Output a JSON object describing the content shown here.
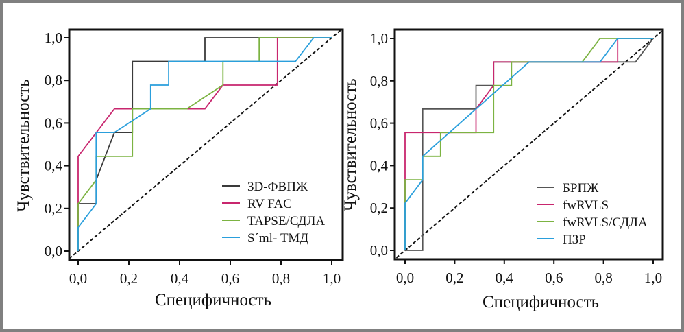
{
  "chart_data": [
    {
      "type": "line",
      "subtype": "roc",
      "xlabel": "Специфичность",
      "ylabel": "Чувствительность",
      "xlim": [
        0,
        1
      ],
      "ylim": [
        0,
        1
      ],
      "xticks": [
        "0,0",
        "0,2",
        "0,4",
        "0,6",
        "0,8",
        "1,0"
      ],
      "yticks": [
        "0,0",
        "0,2",
        "0,4",
        "0,6",
        "0,8",
        "1,0"
      ],
      "xtick_values": [
        0,
        0.2,
        0.4,
        0.6,
        0.8,
        1.0
      ],
      "ytick_values": [
        0,
        0.2,
        0.4,
        0.6,
        0.8,
        1.0
      ],
      "grid": false,
      "legend_position": "bottom-right",
      "reference_line": {
        "style": "dashed",
        "color": "#111111",
        "from": [
          0,
          0
        ],
        "to": [
          1,
          1
        ]
      },
      "series": [
        {
          "name": "3D-ФВПЖ",
          "color": "#3a3a3a",
          "x": [
            0,
            0,
            0.071,
            0.071,
            0.143,
            0.214,
            0.214,
            0.5,
            0.5,
            1.0
          ],
          "y": [
            0,
            0.222,
            0.222,
            0.333,
            0.556,
            0.556,
            0.889,
            0.889,
            1.0,
            1.0
          ]
        },
        {
          "name": "RV FAC",
          "color": "#c8266e",
          "x": [
            0,
            0,
            0.143,
            0.5,
            0.571,
            0.786,
            0.786,
            1.0
          ],
          "y": [
            0,
            0.444,
            0.667,
            0.667,
            0.778,
            0.778,
            1.0,
            1.0
          ]
        },
        {
          "name": "TAPSE/СДЛА",
          "color": "#7cb342",
          "x": [
            0,
            0,
            0.071,
            0.071,
            0.214,
            0.214,
            0.429,
            0.571,
            0.571,
            0.714,
            0.714,
            1.0
          ],
          "y": [
            0,
            0.222,
            0.333,
            0.444,
            0.444,
            0.667,
            0.667,
            0.778,
            0.889,
            0.889,
            1.0,
            1.0
          ]
        },
        {
          "name": "S´ml- ТМД",
          "color": "#2a9fdc",
          "x": [
            0,
            0,
            0.071,
            0.071,
            0.143,
            0.286,
            0.286,
            0.357,
            0.357,
            0.857,
            0.929,
            1.0
          ],
          "y": [
            0,
            0.111,
            0.222,
            0.556,
            0.556,
            0.667,
            0.778,
            0.778,
            0.889,
            0.889,
            1.0,
            1.0
          ]
        }
      ]
    },
    {
      "type": "line",
      "subtype": "roc",
      "xlabel": "Специфичность",
      "ylabel": "Чувствительность",
      "xlim": [
        0,
        1
      ],
      "ylim": [
        0,
        1
      ],
      "xticks": [
        "0,0",
        "0,2",
        "0,4",
        "0,6",
        "0,8",
        "1,0"
      ],
      "yticks": [
        "0,0",
        "0,2",
        "0,4",
        "0,6",
        "0,8",
        "1,0"
      ],
      "xtick_values": [
        0,
        0.2,
        0.4,
        0.6,
        0.8,
        1.0
      ],
      "ytick_values": [
        0,
        0.2,
        0.4,
        0.6,
        0.8,
        1.0
      ],
      "grid": false,
      "legend_position": "bottom-right",
      "reference_line": {
        "style": "dashed",
        "color": "#111111",
        "from": [
          0,
          0
        ],
        "to": [
          1,
          1
        ]
      },
      "series": [
        {
          "name": "БРПЖ",
          "color": "#555555",
          "x": [
            0,
            0.071,
            0.071,
            0.286,
            0.286,
            0.357,
            0.357,
            0.929,
            1.0
          ],
          "y": [
            0,
            0,
            0.667,
            0.667,
            0.778,
            0.778,
            0.889,
            0.889,
            1.0
          ]
        },
        {
          "name": "fwRVLS",
          "color": "#c8266e",
          "x": [
            0,
            0,
            0.286,
            0.286,
            0.357,
            0.357,
            0.857,
            0.857,
            1.0
          ],
          "y": [
            0,
            0.556,
            0.556,
            0.667,
            0.778,
            0.889,
            0.889,
            1.0,
            1.0
          ]
        },
        {
          "name": "fwRVLS/СДЛА",
          "color": "#7cb342",
          "x": [
            0,
            0,
            0.071,
            0.071,
            0.143,
            0.143,
            0.357,
            0.357,
            0.429,
            0.429,
            0.714,
            0.786,
            1.0
          ],
          "y": [
            0,
            0.333,
            0.333,
            0.444,
            0.444,
            0.556,
            0.556,
            0.778,
            0.778,
            0.889,
            0.889,
            1.0,
            1.0
          ]
        },
        {
          "name": "ПЗР",
          "color": "#2a9fdc",
          "x": [
            0,
            0,
            0.071,
            0.071,
            0.5,
            0.786,
            0.857,
            1.0
          ],
          "y": [
            0,
            0.222,
            0.333,
            0.444,
            0.889,
            0.889,
            1.0,
            1.0
          ]
        }
      ]
    }
  ]
}
